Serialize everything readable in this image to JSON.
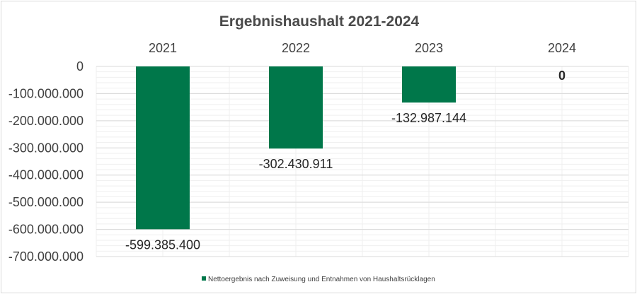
{
  "chart_data": {
    "type": "bar",
    "title": "Ergebnishaushalt 2021-2024",
    "categories": [
      "2021",
      "2022",
      "2023",
      "2024"
    ],
    "series": [
      {
        "name": "Nettoergebnis nach Zuweisung und Entnahmen von Haushaltsrücklagen",
        "values": [
          -599385400,
          -302430911,
          -132987144,
          0
        ],
        "color": "#00774a"
      }
    ],
    "data_labels": [
      "-599.385.400",
      "-302.430.911",
      "-132.987.144",
      "0"
    ],
    "y_ticks": [
      0,
      -100000000,
      -200000000,
      -300000000,
      -400000000,
      -500000000,
      -600000000,
      -700000000
    ],
    "y_tick_labels": [
      "0",
      "-100.000.000",
      "-200.000.000",
      "-300.000.000",
      "-400.000.000",
      "-500.000.000",
      "-600.000.000",
      "-700.000.000"
    ],
    "ylim": [
      -700000000,
      0
    ],
    "x_axis_position": "top",
    "grid": true,
    "legend_position": "bottom",
    "xlabel": "",
    "ylabel": ""
  }
}
